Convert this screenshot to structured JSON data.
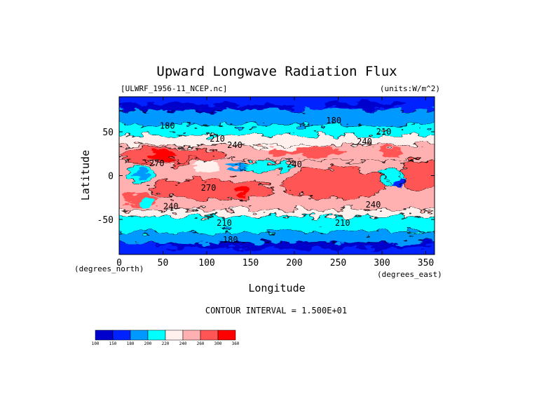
{
  "chart_data": {
    "type": "heatmap",
    "title": "Upward Longwave Radiation Flux",
    "file_label": "[ULWRF_1956-11_NCEP.nc]",
    "units_label": "(units:W/m^2)",
    "xlabel": "Longitude",
    "ylabel": "Latitude",
    "x_unit_label": "(degrees_east)",
    "y_unit_label": "(degrees_north)",
    "xlim": [
      0,
      360
    ],
    "ylim": [
      -90,
      90
    ],
    "x_ticks": [
      0,
      50,
      100,
      150,
      200,
      250,
      300,
      350
    ],
    "y_ticks": [
      50,
      0,
      -50
    ],
    "contour_interval_text": "CONTOUR INTERVAL = 1.500E+01",
    "colorbar": {
      "levels": [
        100,
        150,
        180,
        200,
        220,
        240,
        260,
        300,
        360
      ],
      "level_labels": [
        "100",
        "150",
        "180",
        "200",
        "220",
        "240",
        "260",
        "300",
        "360"
      ],
      "colors": [
        "#0000cc",
        "#0022ff",
        "#0099ff",
        "#00ffff",
        "#fff0ee",
        "#ffb0b0",
        "#ff5555",
        "#ff0000"
      ]
    },
    "contour_labels": [
      {
        "text": "180",
        "lon": 55,
        "lat": 57
      },
      {
        "text": "210",
        "lon": 112,
        "lat": 42
      },
      {
        "text": "240",
        "lon": 132,
        "lat": 35
      },
      {
        "text": "180",
        "lon": 245,
        "lat": 63
      },
      {
        "text": "210",
        "lon": 302,
        "lat": 50
      },
      {
        "text": "240",
        "lon": 280,
        "lat": 39
      },
      {
        "text": "270",
        "lon": 43,
        "lat": 14
      },
      {
        "text": "240",
        "lon": 200,
        "lat": 13
      },
      {
        "text": "270",
        "lon": 102,
        "lat": -14
      },
      {
        "text": "240",
        "lon": 59,
        "lat": -35
      },
      {
        "text": "240",
        "lon": 290,
        "lat": -33
      },
      {
        "text": "210",
        "lon": 120,
        "lat": -54
      },
      {
        "text": "210",
        "lon": 255,
        "lat": -54
      },
      {
        "text": "180",
        "lon": 127,
        "lat": -73
      }
    ]
  }
}
